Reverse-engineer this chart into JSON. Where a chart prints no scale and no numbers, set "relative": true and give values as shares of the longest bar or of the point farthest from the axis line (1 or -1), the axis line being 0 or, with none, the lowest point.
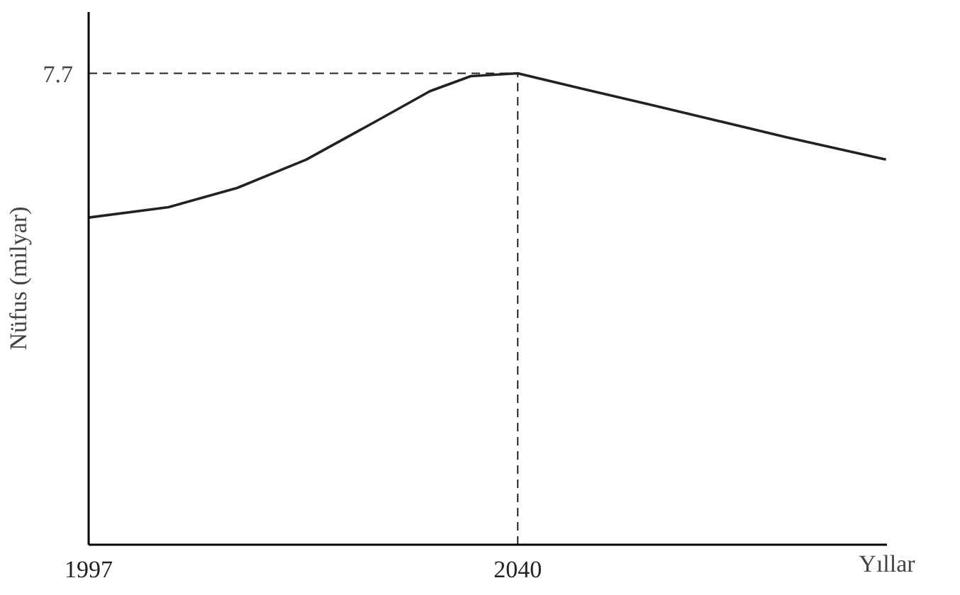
{
  "chart_data": {
    "type": "line",
    "relative": true,
    "xlabel": "Yıllar",
    "ylabel": "Nüfus (milyar)",
    "x": [
      1997,
      2005,
      2011.9,
      2018.8,
      2025.6,
      2031.2,
      2035.3,
      2040,
      2046.3,
      2053.2,
      2060.1,
      2067,
      2076.9
    ],
    "series": [
      {
        "color": "#222222",
        "values": [
          0.694,
          0.716,
          0.757,
          0.817,
          0.896,
          0.962,
          0.994,
          1,
          0.968,
          0.934,
          0.899,
          0.864,
          0.817
        ]
      }
    ],
    "xlim": [
      1997,
      2077
    ],
    "xticks": [
      1997,
      2040
    ],
    "annotations": [
      "7.7"
    ],
    "ref_lines": [
      {
        "axis": "y",
        "value": 1,
        "line_style": "dashed"
      },
      {
        "axis": "x",
        "value": 2040,
        "line_style": "dashed"
      }
    ],
    "grid": false,
    "marker": "none",
    "line_style": "solid"
  }
}
